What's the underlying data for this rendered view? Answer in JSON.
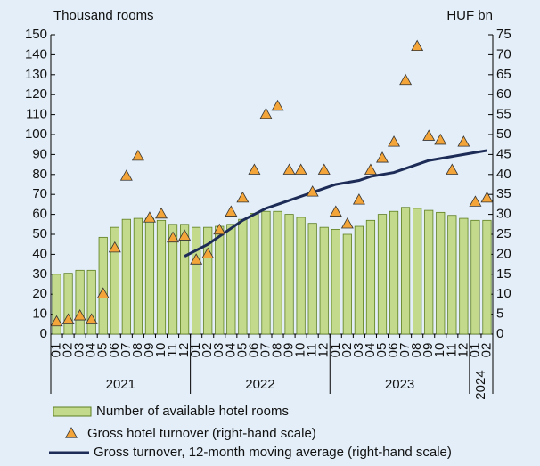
{
  "chart_data": {
    "type": "combo",
    "y_axis_label": "Thousand rooms",
    "y2_axis_label": "HUF bn",
    "groups": [
      {
        "label": "2021",
        "categories": [
          "01",
          "02",
          "03",
          "04",
          "05",
          "06",
          "07",
          "08",
          "09",
          "10",
          "11",
          "12"
        ]
      },
      {
        "label": "2022",
        "categories": [
          "01",
          "02",
          "03",
          "04",
          "05",
          "06",
          "07",
          "08",
          "09",
          "10",
          "11",
          "12"
        ]
      },
      {
        "label": "2023",
        "categories": [
          "01",
          "02",
          "03",
          "04",
          "05",
          "06",
          "07",
          "08",
          "09",
          "10",
          "11",
          "12"
        ]
      },
      {
        "label": "2024",
        "categories": [
          "01",
          "02"
        ]
      }
    ],
    "ylim": [
      0,
      150
    ],
    "yticks": [
      0,
      10,
      20,
      30,
      40,
      50,
      60,
      70,
      80,
      90,
      100,
      110,
      120,
      130,
      140,
      150
    ],
    "y2lim": [
      0,
      75
    ],
    "y2ticks": [
      0,
      5,
      10,
      15,
      20,
      25,
      30,
      35,
      40,
      45,
      50,
      55,
      60,
      65,
      70,
      75
    ],
    "series": [
      {
        "name": "Number of available hotel rooms",
        "type": "bar",
        "color": "#c3da8c",
        "values": [
          30,
          30.5,
          32,
          32,
          48.5,
          53.5,
          57.5,
          58,
          58,
          57,
          55,
          55,
          53.5,
          53.5,
          54,
          55,
          57.5,
          60.5,
          61.5,
          61.5,
          60,
          58.5,
          55.5,
          53.5,
          52.5,
          50,
          54,
          57,
          60,
          61.5,
          63.5,
          63,
          62,
          61,
          59.5,
          58,
          57,
          57
        ]
      },
      {
        "name": "Gross hotel turnover (right-hand scale)",
        "type": "scatter",
        "axis": "y2",
        "color": "#f4a53a",
        "values": [
          3,
          3.5,
          4.5,
          3.5,
          10,
          21.5,
          39.5,
          44.5,
          29,
          30,
          24,
          24.5,
          18.5,
          20,
          26,
          30.5,
          34,
          41,
          55,
          57,
          41,
          41,
          35.5,
          41,
          30.5,
          27.5,
          33.5,
          41,
          44,
          48,
          63.5,
          72,
          49.5,
          48.5,
          41,
          48,
          33,
          34
        ]
      },
      {
        "name": "Gross turnover, 12-month moving average (right-hand scale)",
        "type": "line",
        "axis": "y2",
        "color": "#1d2b57",
        "values": [
          null,
          null,
          null,
          null,
          null,
          null,
          null,
          null,
          null,
          null,
          null,
          19.5,
          21,
          22.5,
          24.5,
          26.5,
          28.5,
          30,
          31.5,
          32.5,
          33.5,
          34.5,
          35.5,
          36.5,
          37.5,
          38,
          38.5,
          39.5,
          40,
          40.5,
          41.5,
          42.5,
          43.5,
          44,
          44.5,
          45,
          45.5,
          46
        ]
      }
    ]
  }
}
